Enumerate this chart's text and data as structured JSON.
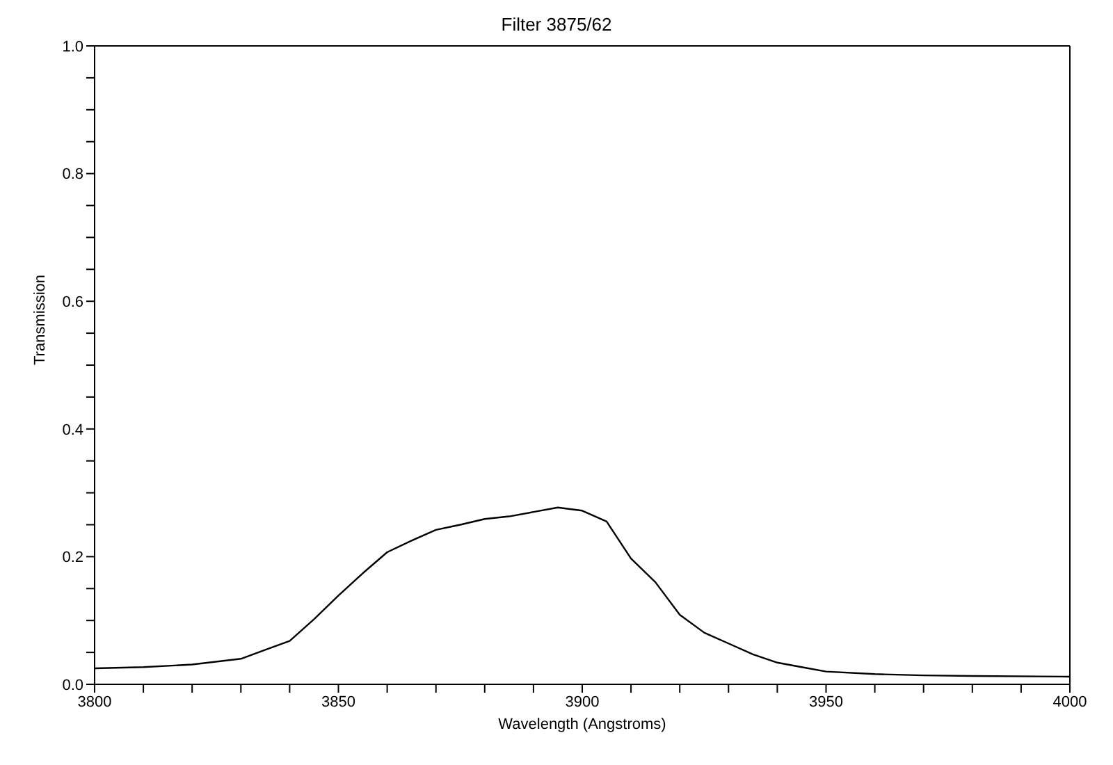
{
  "chart_data": {
    "type": "line",
    "title": "Filter 3875/62",
    "xlabel": "Wavelength (Angstroms)",
    "ylabel": "Transmission",
    "x": [
      3800,
      3810,
      3820,
      3830,
      3835,
      3840,
      3845,
      3850,
      3855,
      3860,
      3865,
      3870,
      3875,
      3880,
      3885,
      3890,
      3895,
      3900,
      3905,
      3910,
      3915,
      3920,
      3925,
      3930,
      3935,
      3940,
      3945,
      3950,
      3960,
      3970,
      3980,
      4000
    ],
    "series": [
      {
        "color": "#000000",
        "values": [
          0.025,
          0.027,
          0.031,
          0.04,
          0.054,
          0.068,
          0.102,
          0.139,
          0.174,
          0.207,
          0.225,
          0.242,
          0.25,
          0.259,
          0.263,
          0.27,
          0.277,
          0.272,
          0.255,
          0.197,
          0.16,
          0.109,
          0.081,
          0.064,
          0.047,
          0.034,
          0.027,
          0.02,
          0.016,
          0.014,
          0.013,
          0.012
        ]
      }
    ],
    "xlim": [
      3800,
      4000
    ],
    "xticks": [
      3800,
      {
        "value": 3810,
        "label": null
      },
      {
        "value": 3820,
        "label": null
      },
      {
        "value": 3830,
        "label": null
      },
      {
        "value": 3840,
        "label": null
      },
      3850,
      {
        "value": 3860,
        "label": null
      },
      {
        "value": 3870,
        "label": null
      },
      {
        "value": 3880,
        "label": null
      },
      {
        "value": 3890,
        "label": null
      },
      3900,
      {
        "value": 3910,
        "label": null
      },
      {
        "value": 3920,
        "label": null
      },
      {
        "value": 3930,
        "label": null
      },
      {
        "value": 3940,
        "label": null
      },
      3950,
      {
        "value": 3960,
        "label": null
      },
      {
        "value": 3970,
        "label": null
      },
      {
        "value": 3980,
        "label": null
      },
      {
        "value": 3990,
        "label": null
      },
      4000
    ],
    "ylim": [
      0,
      1
    ],
    "yticks": [
      {
        "value": 0,
        "label": "0.0"
      },
      {
        "value": 0.05,
        "label": null
      },
      {
        "value": 0.1,
        "label": null
      },
      {
        "value": 0.15,
        "label": null
      },
      {
        "value": 0.2,
        "label": "0.2"
      },
      {
        "value": 0.25,
        "label": null
      },
      {
        "value": 0.3,
        "label": null
      },
      {
        "value": 0.35,
        "label": null
      },
      {
        "value": 0.4,
        "label": "0.4"
      },
      {
        "value": 0.45,
        "label": null
      },
      {
        "value": 0.5,
        "label": null
      },
      {
        "value": 0.55,
        "label": null
      },
      {
        "value": 0.6,
        "label": "0.6"
      },
      {
        "value": 0.65,
        "label": null
      },
      {
        "value": 0.7,
        "label": null
      },
      {
        "value": 0.75,
        "label": null
      },
      {
        "value": 0.8,
        "label": "0.8"
      },
      {
        "value": 0.85,
        "label": null
      },
      {
        "value": 0.9,
        "label": null
      },
      {
        "value": 0.95,
        "label": null
      },
      {
        "value": 1,
        "label": "1.0"
      }
    ],
    "grid": false,
    "legend": false,
    "marker": "none",
    "line_style": "solid"
  }
}
